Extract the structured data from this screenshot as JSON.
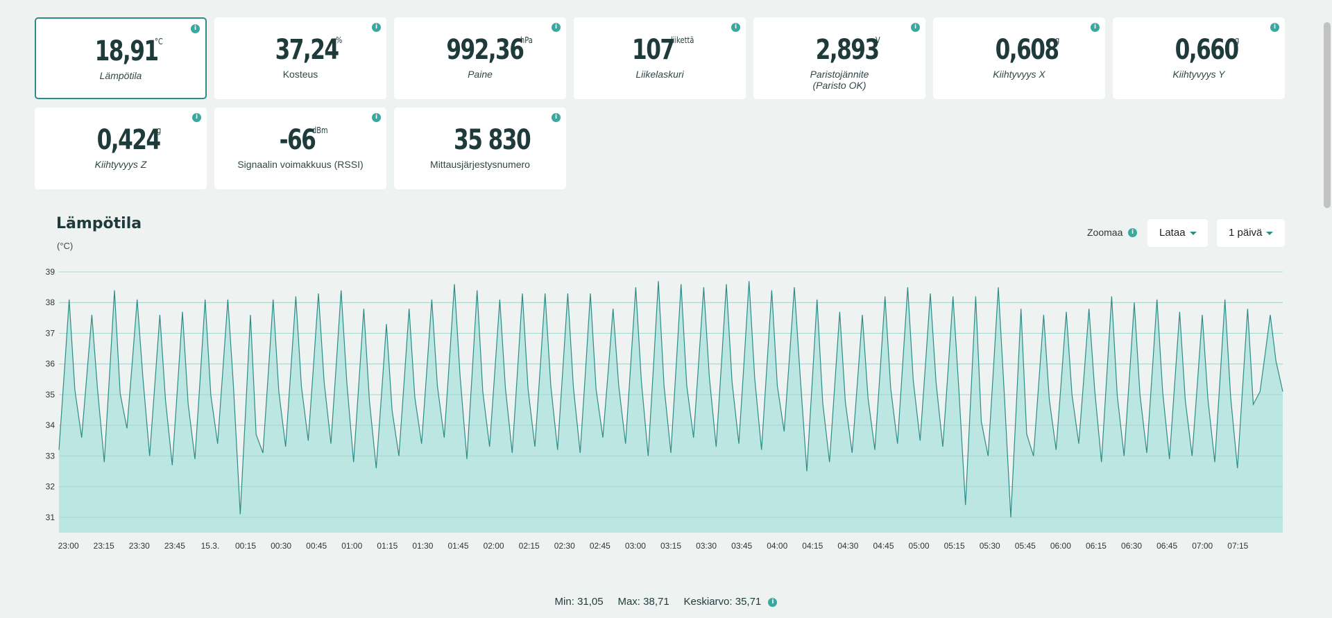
{
  "tiles": [
    {
      "value": "18,91",
      "unit": "°C",
      "label": "Lämpötila",
      "label2": "",
      "selected": true,
      "italic": true
    },
    {
      "value": "37,24",
      "unit": "%",
      "label": "Kosteus",
      "label2": "",
      "selected": false,
      "italic": false
    },
    {
      "value": "992,36",
      "unit": "hPa",
      "label": "Paine",
      "label2": "",
      "selected": false,
      "italic": true
    },
    {
      "value": "107",
      "unit": "liikettä",
      "label": "Liikelaskuri",
      "label2": "",
      "selected": false,
      "italic": true
    },
    {
      "value": "2,893",
      "unit": "V",
      "label": "Paristojännite",
      "label2": "(Paristo OK)",
      "selected": false,
      "italic": true
    },
    {
      "value": "0,608",
      "unit": "g",
      "label": "Kiihtyvyys X",
      "label2": "",
      "selected": false,
      "italic": true
    },
    {
      "value": "0,660",
      "unit": "g",
      "label": "Kiihtyvyys Y",
      "label2": "",
      "selected": false,
      "italic": true
    },
    {
      "value": "0,424",
      "unit": "g",
      "label": "Kiihtyvyys Z",
      "label2": "",
      "selected": false,
      "italic": true
    },
    {
      "value": "-66",
      "unit": "dBm",
      "label": "Signaalin voimakkuus (RSSI)",
      "label2": "",
      "selected": false,
      "italic": false
    },
    {
      "value": "35 830",
      "unit": "",
      "label": "Mittausjärjestysnumero",
      "label2": "",
      "selected": false,
      "italic": false
    }
  ],
  "info_glyph": "i",
  "chart_header": {
    "title": "Lämpötila",
    "unit": "(°C)",
    "zoom_label": "Zoomaa",
    "download_label": "Lataa",
    "range_label": "1 päivä"
  },
  "stats": {
    "min_label": "Min:",
    "min_value": "31,05",
    "max_label": "Max:",
    "max_value": "38,71",
    "avg_label": "Keskiarvo:",
    "avg_value": "35,71"
  },
  "colors": {
    "accent": "#3aa89e",
    "fill": "#b8e5df",
    "line": "#2e8b86",
    "text": "#1f3a3a"
  },
  "chart_data": {
    "type": "area",
    "title": "Lämpötila",
    "ylabel": "(°C)",
    "ylim": [
      30.5,
      39
    ],
    "yticks": [
      31,
      32,
      33,
      34,
      35,
      36,
      37,
      38,
      39
    ],
    "grid": true,
    "x_tick_labels": [
      "23:00",
      "23:15",
      "23:30",
      "23:45",
      "15.3.",
      "00:15",
      "00:30",
      "00:45",
      "01:00",
      "01:15",
      "01:30",
      "01:45",
      "02:00",
      "02:15",
      "02:30",
      "02:45",
      "03:00",
      "03:15",
      "03:30",
      "03:45",
      "04:00",
      "04:15",
      "04:30",
      "04:45",
      "05:00",
      "05:15",
      "05:30",
      "05:45",
      "06:00",
      "06:15",
      "06:30",
      "06:45",
      "07:00",
      "07:15"
    ],
    "x_start_min": -4,
    "x_end_min": 514,
    "series": [
      {
        "peaks": [
          38.1,
          37.6,
          38.4,
          38.1,
          37.6,
          37.7,
          38.1,
          38.1,
          37.6,
          38.1,
          38.2,
          38.3,
          38.4,
          37.8,
          37.3,
          37.8,
          38.1,
          38.6,
          38.4,
          38.1,
          38.3,
          38.3,
          38.3,
          38.3,
          37.8,
          38.5,
          38.7,
          38.6,
          38.5,
          38.6,
          38.7,
          38.4,
          38.5,
          38.1,
          37.7,
          37.6,
          38.2,
          38.5,
          38.3,
          38.2,
          38.2,
          38.5,
          37.8,
          37.6,
          37.7,
          37.8,
          38.2,
          38.0,
          38.1,
          37.7,
          37.6,
          38.1,
          37.8,
          37.6
        ],
        "troughs": [
          33.2,
          33.6,
          32.8,
          33.9,
          33.0,
          32.7,
          32.9,
          33.4,
          31.1,
          33.1,
          33.3,
          33.5,
          33.4,
          32.8,
          32.6,
          33.0,
          33.4,
          33.6,
          32.9,
          33.3,
          33.1,
          33.3,
          33.2,
          33.1,
          33.6,
          33.4,
          33.0,
          33.1,
          33.6,
          33.3,
          33.4,
          33.2,
          33.8,
          32.5,
          32.8,
          33.1,
          33.2,
          33.4,
          33.5,
          33.3,
          31.4,
          33.0,
          31.0,
          33.0,
          33.2,
          33.4,
          32.8,
          33.0,
          33.1,
          32.9,
          33.0,
          32.8,
          32.6,
          35.1
        ]
      }
    ]
  }
}
